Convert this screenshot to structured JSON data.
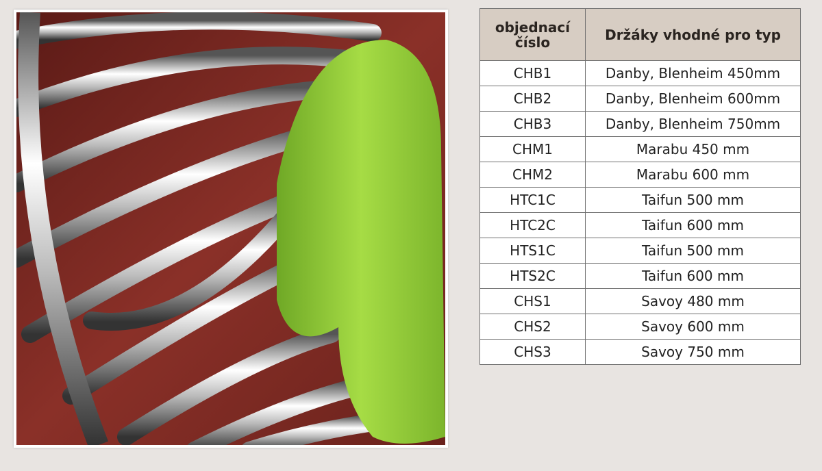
{
  "image": {
    "subject": "chrome-towel-radiator-with-green-towel",
    "colors": {
      "wall": "#7a2a22",
      "towel": "#9ad13a",
      "chrome": "#d8d8dc"
    }
  },
  "table": {
    "headers": [
      "objednací číslo",
      "Držáky vhodné pro typ"
    ],
    "rows": [
      [
        "CHB1",
        "Danby, Blenheim 450mm"
      ],
      [
        "CHB2",
        "Danby, Blenheim 600mm"
      ],
      [
        "CHB3",
        "Danby, Blenheim 750mm"
      ],
      [
        "CHM1",
        "Marabu 450 mm"
      ],
      [
        "CHM2",
        "Marabu 600 mm"
      ],
      [
        "HTC1C",
        "Taifun 500 mm"
      ],
      [
        "HTC2C",
        "Taifun 600 mm"
      ],
      [
        "HTS1C",
        "Taifun 500 mm"
      ],
      [
        "HTS2C",
        "Taifun 600 mm"
      ],
      [
        "CHS1",
        "Savoy 480 mm"
      ],
      [
        "CHS2",
        "Savoy 600 mm"
      ],
      [
        "CHS3",
        "Savoy 750 mm"
      ]
    ],
    "header_bg": "#d7cdc3"
  }
}
